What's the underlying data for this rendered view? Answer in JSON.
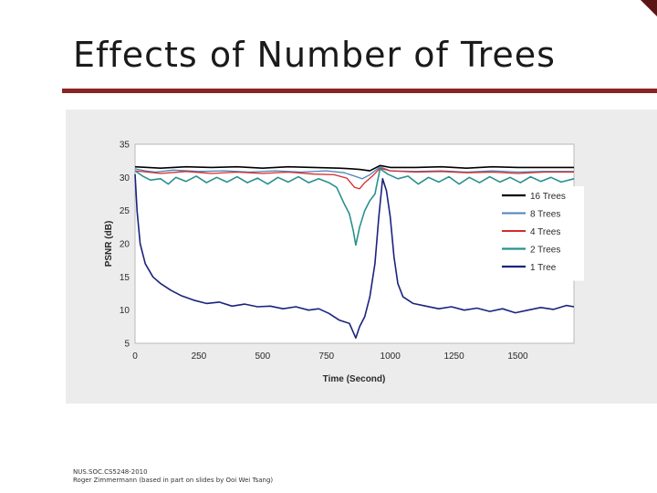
{
  "slide": {
    "title": "Effects of Number of Trees",
    "footer_line1": "NUS.SOC.CS5248-2010",
    "footer_line2": "Roger Zimmermann (based in part on slides by Ooi Wei Tsang)",
    "accent_color": "#8b2323"
  },
  "chart_data": {
    "type": "line",
    "title": "",
    "xlabel": "Time (Second)",
    "ylabel": "PSNR (dB)",
    "xlim": [
      0,
      1720
    ],
    "ylim": [
      5,
      35
    ],
    "xticks": [
      0,
      250,
      500,
      750,
      1000,
      1250,
      1500
    ],
    "yticks": [
      5,
      10,
      15,
      20,
      25,
      30,
      35
    ],
    "legend_position": "right-middle",
    "series": [
      {
        "name": "16 Trees",
        "color": "#000000",
        "width": 1.6,
        "points": [
          [
            0,
            31.6
          ],
          [
            50,
            31.5
          ],
          [
            100,
            31.4
          ],
          [
            200,
            31.6
          ],
          [
            300,
            31.5
          ],
          [
            400,
            31.6
          ],
          [
            500,
            31.4
          ],
          [
            600,
            31.6
          ],
          [
            700,
            31.5
          ],
          [
            800,
            31.4
          ],
          [
            850,
            31.3
          ],
          [
            880,
            31.2
          ],
          [
            920,
            31.0
          ],
          [
            960,
            31.8
          ],
          [
            1000,
            31.5
          ],
          [
            1100,
            31.5
          ],
          [
            1200,
            31.6
          ],
          [
            1300,
            31.4
          ],
          [
            1400,
            31.6
          ],
          [
            1500,
            31.5
          ],
          [
            1600,
            31.5
          ],
          [
            1720,
            31.5
          ]
        ]
      },
      {
        "name": "8 Trees",
        "color": "#4d82b8",
        "width": 1.3,
        "points": [
          [
            0,
            31.3
          ],
          [
            40,
            31.0
          ],
          [
            80,
            30.8
          ],
          [
            150,
            31.1
          ],
          [
            250,
            30.9
          ],
          [
            350,
            31.0
          ],
          [
            450,
            30.8
          ],
          [
            550,
            31.0
          ],
          [
            650,
            30.8
          ],
          [
            750,
            31.0
          ],
          [
            820,
            30.7
          ],
          [
            860,
            30.2
          ],
          [
            890,
            29.8
          ],
          [
            920,
            30.4
          ],
          [
            960,
            31.6
          ],
          [
            1000,
            31.0
          ],
          [
            1100,
            30.9
          ],
          [
            1200,
            31.0
          ],
          [
            1300,
            30.8
          ],
          [
            1400,
            31.0
          ],
          [
            1500,
            30.8
          ],
          [
            1600,
            30.9
          ],
          [
            1720,
            30.9
          ]
        ]
      },
      {
        "name": "4 Trees",
        "color": "#d62b2b",
        "width": 1.3,
        "points": [
          [
            0,
            31.0
          ],
          [
            50,
            30.8
          ],
          [
            100,
            30.6
          ],
          [
            200,
            30.9
          ],
          [
            300,
            30.6
          ],
          [
            400,
            30.8
          ],
          [
            500,
            30.6
          ],
          [
            600,
            30.8
          ],
          [
            700,
            30.5
          ],
          [
            780,
            30.4
          ],
          [
            830,
            29.9
          ],
          [
            860,
            28.5
          ],
          [
            880,
            28.3
          ],
          [
            900,
            29.2
          ],
          [
            930,
            30.2
          ],
          [
            960,
            31.4
          ],
          [
            1000,
            31.0
          ],
          [
            1100,
            30.8
          ],
          [
            1200,
            30.9
          ],
          [
            1300,
            30.7
          ],
          [
            1400,
            30.8
          ],
          [
            1500,
            30.6
          ],
          [
            1600,
            30.8
          ],
          [
            1720,
            30.8
          ]
        ]
      },
      {
        "name": "2 Trees",
        "color": "#2a8f8f",
        "width": 1.6,
        "points": [
          [
            0,
            31.0
          ],
          [
            30,
            30.2
          ],
          [
            60,
            29.6
          ],
          [
            100,
            29.8
          ],
          [
            130,
            29.0
          ],
          [
            160,
            30.0
          ],
          [
            200,
            29.4
          ],
          [
            240,
            30.2
          ],
          [
            280,
            29.2
          ],
          [
            320,
            30.0
          ],
          [
            360,
            29.3
          ],
          [
            400,
            30.1
          ],
          [
            440,
            29.2
          ],
          [
            480,
            29.9
          ],
          [
            520,
            29.0
          ],
          [
            560,
            30.0
          ],
          [
            600,
            29.3
          ],
          [
            640,
            30.1
          ],
          [
            680,
            29.2
          ],
          [
            720,
            29.8
          ],
          [
            760,
            29.2
          ],
          [
            790,
            28.5
          ],
          [
            820,
            26.0
          ],
          [
            840,
            24.5
          ],
          [
            855,
            22.0
          ],
          [
            865,
            19.8
          ],
          [
            880,
            22.5
          ],
          [
            900,
            25.0
          ],
          [
            920,
            26.5
          ],
          [
            940,
            27.5
          ],
          [
            960,
            31.3
          ],
          [
            990,
            30.5
          ],
          [
            1030,
            29.8
          ],
          [
            1070,
            30.2
          ],
          [
            1110,
            29.0
          ],
          [
            1150,
            30.0
          ],
          [
            1190,
            29.3
          ],
          [
            1230,
            30.1
          ],
          [
            1270,
            29.0
          ],
          [
            1310,
            30.0
          ],
          [
            1350,
            29.2
          ],
          [
            1390,
            30.1
          ],
          [
            1430,
            29.3
          ],
          [
            1470,
            30.0
          ],
          [
            1510,
            29.2
          ],
          [
            1550,
            30.1
          ],
          [
            1590,
            29.4
          ],
          [
            1630,
            30.0
          ],
          [
            1670,
            29.3
          ],
          [
            1720,
            29.8
          ]
        ]
      },
      {
        "name": "1 Tree",
        "color": "#1a237e",
        "width": 1.6,
        "points": [
          [
            0,
            30.5
          ],
          [
            8,
            25.0
          ],
          [
            20,
            20.0
          ],
          [
            40,
            17.0
          ],
          [
            70,
            15.0
          ],
          [
            100,
            14.0
          ],
          [
            140,
            13.0
          ],
          [
            180,
            12.2
          ],
          [
            230,
            11.5
          ],
          [
            280,
            11.0
          ],
          [
            330,
            11.2
          ],
          [
            380,
            10.6
          ],
          [
            430,
            10.9
          ],
          [
            480,
            10.5
          ],
          [
            530,
            10.6
          ],
          [
            580,
            10.2
          ],
          [
            630,
            10.5
          ],
          [
            680,
            10.0
          ],
          [
            720,
            10.2
          ],
          [
            760,
            9.5
          ],
          [
            800,
            8.5
          ],
          [
            840,
            8.0
          ],
          [
            865,
            5.8
          ],
          [
            880,
            7.5
          ],
          [
            900,
            9.0
          ],
          [
            920,
            12.0
          ],
          [
            940,
            17.0
          ],
          [
            955,
            24.0
          ],
          [
            970,
            29.8
          ],
          [
            985,
            28.0
          ],
          [
            1000,
            24.0
          ],
          [
            1015,
            18.0
          ],
          [
            1030,
            14.0
          ],
          [
            1050,
            12.0
          ],
          [
            1090,
            11.0
          ],
          [
            1140,
            10.6
          ],
          [
            1190,
            10.2
          ],
          [
            1240,
            10.5
          ],
          [
            1290,
            10.0
          ],
          [
            1340,
            10.3
          ],
          [
            1390,
            9.8
          ],
          [
            1440,
            10.2
          ],
          [
            1490,
            9.6
          ],
          [
            1540,
            10.0
          ],
          [
            1590,
            10.4
          ],
          [
            1640,
            10.1
          ],
          [
            1690,
            10.7
          ],
          [
            1720,
            10.5
          ]
        ]
      }
    ]
  }
}
